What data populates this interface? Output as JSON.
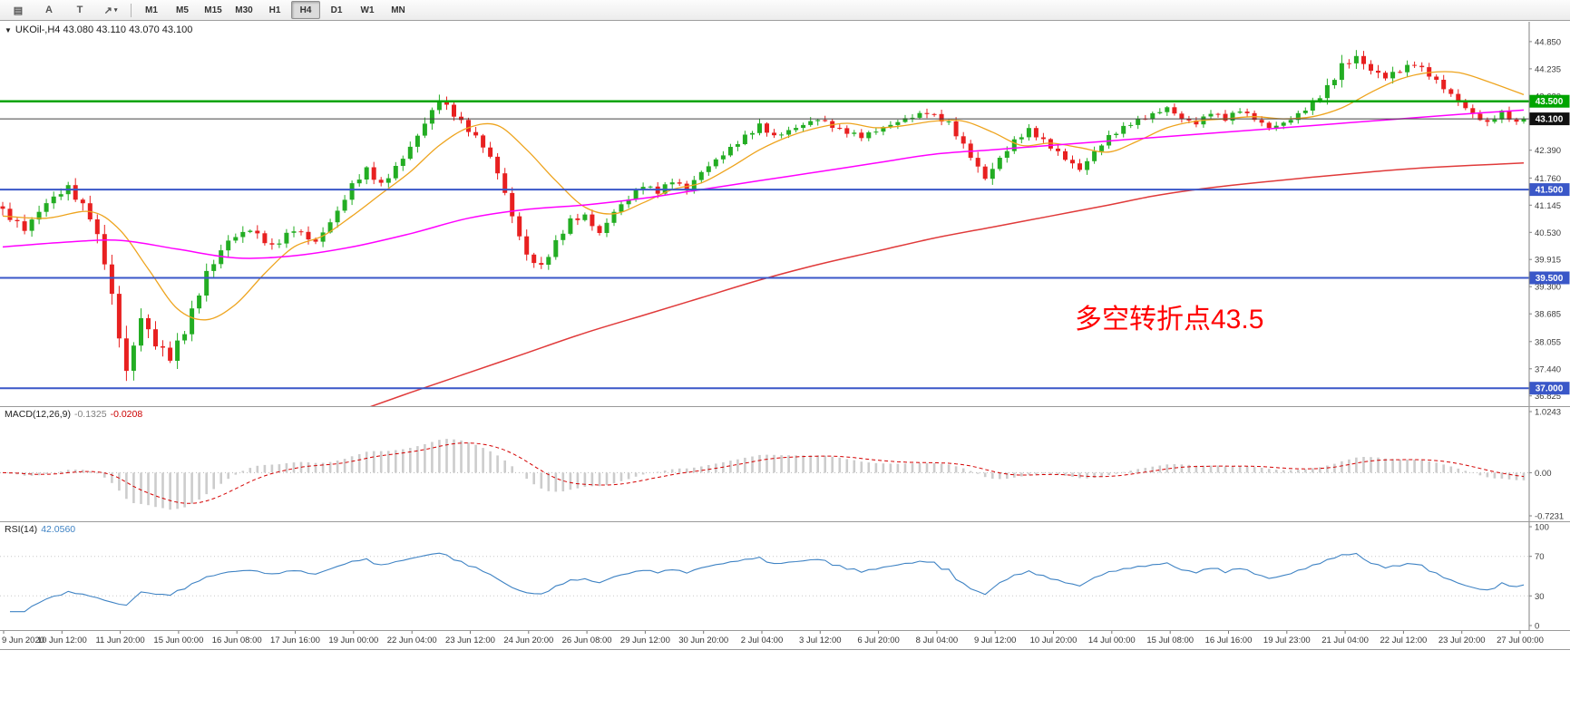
{
  "toolbar": {
    "tools": [
      {
        "name": "chart-templates-button",
        "glyph": "▤",
        "caret": false
      },
      {
        "name": "text-label-tool-button",
        "glyph": "A",
        "caret": false
      },
      {
        "name": "drawing-tools-button",
        "glyph": "T",
        "caret": false
      },
      {
        "name": "arrow-tools-dropdown",
        "glyph": "↗",
        "caret": true
      }
    ],
    "timeframes": [
      "M1",
      "M5",
      "M15",
      "M30",
      "H1",
      "H4",
      "D1",
      "W1",
      "MN"
    ],
    "active_timeframe": "H4"
  },
  "chart": {
    "symbol_line": "UKOil-,H4 43.080 43.110 43.070 43.100",
    "annotation": {
      "text": "多空转折点43.5",
      "color": "#ff0000"
    }
  },
  "chart_data": {
    "type": "candlestick",
    "symbol": "UKOil-",
    "timeframe": "H4",
    "ohlc_current": {
      "open": "43.080",
      "high": "43.110",
      "low": "43.070",
      "close": "43.100"
    },
    "bars": 210,
    "y_axis_range": [
      36.825,
      44.85
    ],
    "y_axis_labels": [
      "44.850",
      "44.235",
      "43.620",
      "42.390",
      "41.760",
      "41.145",
      "40.530",
      "39.915",
      "39.300",
      "38.685",
      "38.055",
      "37.440",
      "36.825"
    ],
    "x_labels": [
      "9 Jun 2020",
      "10 Jun 12:00",
      "11 Jun 20:00",
      "15 Jun 00:00",
      "16 Jun 08:00",
      "17 Jun 16:00",
      "19 Jun 00:00",
      "22 Jun 04:00",
      "23 Jun 12:00",
      "24 Jun 20:00",
      "26 Jun 08:00",
      "29 Jun 12:00",
      "30 Jun 20:00",
      "2 Jul 04:00",
      "3 Jul 12:00",
      "6 Jul 20:00",
      "8 Jul 04:00",
      "9 Jul 12:00",
      "10 Jul 20:00",
      "14 Jul 00:00",
      "15 Jul 08:00",
      "16 Jul 16:00",
      "19 Jul 23:00",
      "21 Jul 04:00",
      "22 Jul 12:00",
      "23 Jul 20:00",
      "27 Jul 00:00"
    ],
    "price_keyframes": [
      [
        0,
        41.0,
        0.3
      ],
      [
        3,
        40.6,
        0.3
      ],
      [
        6,
        41.2,
        0.3
      ],
      [
        9,
        41.55,
        0.3
      ],
      [
        12,
        40.9,
        0.35
      ],
      [
        14,
        39.9,
        0.5
      ],
      [
        16,
        38.2,
        0.6
      ],
      [
        17,
        37.35,
        0.6
      ],
      [
        19,
        38.6,
        0.45
      ],
      [
        21,
        38.0,
        0.4
      ],
      [
        23,
        37.7,
        0.4
      ],
      [
        25,
        38.3,
        0.35
      ],
      [
        28,
        39.6,
        0.35
      ],
      [
        31,
        40.35,
        0.3
      ],
      [
        34,
        40.6,
        0.25
      ],
      [
        37,
        40.2,
        0.25
      ],
      [
        40,
        40.6,
        0.25
      ],
      [
        43,
        40.3,
        0.25
      ],
      [
        46,
        41.0,
        0.25
      ],
      [
        48,
        41.6,
        0.25
      ],
      [
        50,
        41.95,
        0.25
      ],
      [
        52,
        41.6,
        0.25
      ],
      [
        54,
        42.0,
        0.22
      ],
      [
        56,
        42.45,
        0.25
      ],
      [
        58,
        43.0,
        0.28
      ],
      [
        60,
        43.55,
        0.3
      ],
      [
        62,
        43.2,
        0.25
      ],
      [
        64,
        42.85,
        0.22
      ],
      [
        66,
        42.5,
        0.25
      ],
      [
        68,
        41.9,
        0.28
      ],
      [
        70,
        40.9,
        0.32
      ],
      [
        72,
        40.0,
        0.32
      ],
      [
        74,
        39.75,
        0.28
      ],
      [
        76,
        40.3,
        0.25
      ],
      [
        78,
        40.8,
        0.22
      ],
      [
        80,
        40.9,
        0.22
      ],
      [
        82,
        40.5,
        0.22
      ],
      [
        84,
        41.0,
        0.2
      ],
      [
        86,
        41.3,
        0.2
      ],
      [
        88,
        41.6,
        0.2
      ],
      [
        90,
        41.45,
        0.2
      ],
      [
        92,
        41.7,
        0.2
      ],
      [
        94,
        41.5,
        0.2
      ],
      [
        96,
        41.9,
        0.2
      ],
      [
        99,
        42.3,
        0.2
      ],
      [
        102,
        42.7,
        0.2
      ],
      [
        104,
        42.95,
        0.22
      ],
      [
        106,
        42.7,
        0.18
      ],
      [
        109,
        42.9,
        0.18
      ],
      [
        112,
        43.1,
        0.2
      ],
      [
        115,
        42.85,
        0.18
      ],
      [
        118,
        42.7,
        0.18
      ],
      [
        121,
        42.9,
        0.18
      ],
      [
        124,
        43.1,
        0.18
      ],
      [
        127,
        43.25,
        0.2
      ],
      [
        130,
        43.0,
        0.2
      ],
      [
        132,
        42.5,
        0.25
      ],
      [
        135,
        41.75,
        0.3
      ],
      [
        137,
        42.2,
        0.25
      ],
      [
        139,
        42.6,
        0.22
      ],
      [
        141,
        42.85,
        0.2
      ],
      [
        143,
        42.6,
        0.2
      ],
      [
        146,
        42.2,
        0.22
      ],
      [
        148,
        41.95,
        0.25
      ],
      [
        150,
        42.35,
        0.22
      ],
      [
        152,
        42.7,
        0.2
      ],
      [
        155,
        43.0,
        0.18
      ],
      [
        158,
        43.2,
        0.18
      ],
      [
        160,
        43.35,
        0.18
      ],
      [
        162,
        43.1,
        0.18
      ],
      [
        164,
        43.0,
        0.18
      ],
      [
        166,
        43.25,
        0.18
      ],
      [
        168,
        43.1,
        0.18
      ],
      [
        170,
        43.3,
        0.18
      ],
      [
        172,
        43.1,
        0.18
      ],
      [
        174,
        42.9,
        0.18
      ],
      [
        176,
        43.0,
        0.18
      ],
      [
        178,
        43.2,
        0.18
      ],
      [
        180,
        43.45,
        0.2
      ],
      [
        182,
        43.8,
        0.3
      ],
      [
        184,
        44.3,
        0.38
      ],
      [
        186,
        44.5,
        0.32
      ],
      [
        188,
        44.2,
        0.28
      ],
      [
        190,
        44.05,
        0.25
      ],
      [
        192,
        44.2,
        0.22
      ],
      [
        194,
        44.35,
        0.22
      ],
      [
        196,
        44.1,
        0.22
      ],
      [
        198,
        43.8,
        0.22
      ],
      [
        200,
        43.5,
        0.22
      ],
      [
        202,
        43.2,
        0.2
      ],
      [
        204,
        43.0,
        0.2
      ],
      [
        206,
        43.25,
        0.18
      ],
      [
        208,
        43.0,
        0.18
      ],
      [
        209,
        43.1,
        0.12
      ]
    ],
    "ma_fast": [
      [
        0,
        40.9
      ],
      [
        6,
        40.85
      ],
      [
        12,
        41.0
      ],
      [
        16,
        40.6
      ],
      [
        20,
        39.7
      ],
      [
        24,
        38.8
      ],
      [
        28,
        38.55
      ],
      [
        32,
        38.9
      ],
      [
        36,
        39.6
      ],
      [
        40,
        40.2
      ],
      [
        44,
        40.45
      ],
      [
        48,
        40.9
      ],
      [
        52,
        41.4
      ],
      [
        56,
        41.9
      ],
      [
        60,
        42.5
      ],
      [
        64,
        42.9
      ],
      [
        68,
        42.95
      ],
      [
        72,
        42.4
      ],
      [
        76,
        41.7
      ],
      [
        80,
        41.1
      ],
      [
        84,
        40.95
      ],
      [
        88,
        41.2
      ],
      [
        92,
        41.5
      ],
      [
        96,
        41.65
      ],
      [
        100,
        42.0
      ],
      [
        104,
        42.4
      ],
      [
        108,
        42.7
      ],
      [
        112,
        42.9
      ],
      [
        116,
        43.0
      ],
      [
        120,
        42.9
      ],
      [
        124,
        42.95
      ],
      [
        128,
        43.05
      ],
      [
        132,
        43.05
      ],
      [
        136,
        42.8
      ],
      [
        140,
        42.5
      ],
      [
        144,
        42.55
      ],
      [
        148,
        42.45
      ],
      [
        152,
        42.35
      ],
      [
        156,
        42.6
      ],
      [
        160,
        42.9
      ],
      [
        164,
        43.05
      ],
      [
        168,
        43.1
      ],
      [
        172,
        43.15
      ],
      [
        176,
        43.1
      ],
      [
        180,
        43.15
      ],
      [
        184,
        43.35
      ],
      [
        188,
        43.7
      ],
      [
        192,
        44.0
      ],
      [
        196,
        44.15
      ],
      [
        200,
        44.15
      ],
      [
        204,
        43.95
      ],
      [
        209,
        43.65
      ]
    ],
    "ma_mid": [
      [
        0,
        40.2
      ],
      [
        8,
        40.3
      ],
      [
        16,
        40.35
      ],
      [
        24,
        40.15
      ],
      [
        32,
        39.95
      ],
      [
        40,
        40.0
      ],
      [
        48,
        40.2
      ],
      [
        56,
        40.5
      ],
      [
        64,
        40.85
      ],
      [
        72,
        41.05
      ],
      [
        80,
        41.15
      ],
      [
        88,
        41.3
      ],
      [
        96,
        41.5
      ],
      [
        104,
        41.7
      ],
      [
        112,
        41.9
      ],
      [
        120,
        42.1
      ],
      [
        128,
        42.3
      ],
      [
        136,
        42.4
      ],
      [
        144,
        42.5
      ],
      [
        152,
        42.6
      ],
      [
        160,
        42.7
      ],
      [
        168,
        42.8
      ],
      [
        176,
        42.9
      ],
      [
        184,
        43.0
      ],
      [
        192,
        43.1
      ],
      [
        200,
        43.2
      ],
      [
        209,
        43.3
      ]
    ],
    "ma_slow": [
      [
        50,
        36.55
      ],
      [
        56,
        36.9
      ],
      [
        64,
        37.35
      ],
      [
        72,
        37.8
      ],
      [
        80,
        38.25
      ],
      [
        88,
        38.65
      ],
      [
        96,
        39.05
      ],
      [
        104,
        39.45
      ],
      [
        112,
        39.8
      ],
      [
        120,
        40.1
      ],
      [
        128,
        40.4
      ],
      [
        136,
        40.65
      ],
      [
        144,
        40.9
      ],
      [
        152,
        41.15
      ],
      [
        158,
        41.35
      ],
      [
        164,
        41.5
      ],
      [
        172,
        41.65
      ],
      [
        180,
        41.78
      ],
      [
        188,
        41.9
      ],
      [
        196,
        42.0
      ],
      [
        209,
        42.1
      ]
    ],
    "hlines": [
      {
        "price": 43.5,
        "label": "43.500",
        "color": "#00a400",
        "width": 2.5,
        "name": "resistance-line-43-5"
      },
      {
        "price": 41.5,
        "label": "41.500",
        "color": "#3a57c8",
        "width": 2,
        "name": "support-line-41-5"
      },
      {
        "price": 39.5,
        "label": "39.500",
        "color": "#3a57c8",
        "width": 2,
        "name": "support-line-39-5"
      },
      {
        "price": 37.0,
        "label": "37.000",
        "color": "#3a57c8",
        "width": 2,
        "name": "support-line-37-0"
      }
    ],
    "bid": {
      "price": 43.1,
      "label": "43.100",
      "tag_color": "#111111",
      "line_color": "#404040"
    },
    "macd": {
      "title": "MACD(12,26,9)",
      "value_main": "-0.1325",
      "value_signal": "-0.0208",
      "axis_labels": [
        "1.0243",
        "0.00",
        "-0.7231"
      ],
      "params": {
        "fast": 12,
        "slow": 26,
        "signal": 9
      }
    },
    "rsi": {
      "title": "RSI(14)",
      "value": "42.0560",
      "period": 14,
      "levels": [
        70,
        30
      ],
      "axis_labels": [
        "100",
        "70",
        "30",
        "0"
      ]
    },
    "colors": {
      "candle_up": "#23ad23",
      "candle_down": "#e82020",
      "ma_fast": "#eea41e",
      "ma_mid": "#ff00ff",
      "ma_slow": "#e03a3a",
      "macd_hist": "#cccccc",
      "macd_signal": "#d40000",
      "rsi_line": "#3f83c4",
      "hline_green": "#00a400",
      "hline_blue": "#3a57c8"
    }
  }
}
